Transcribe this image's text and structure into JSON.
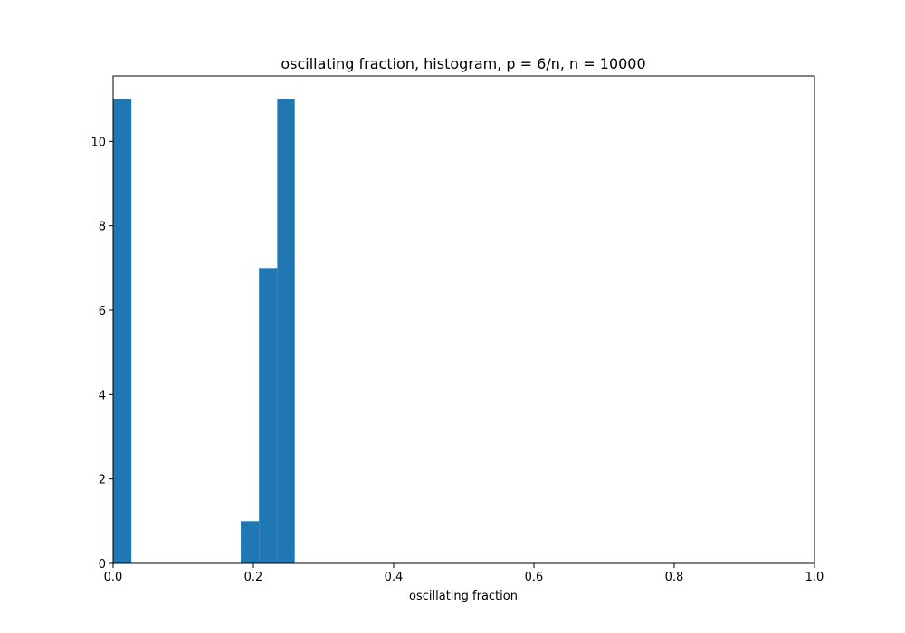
{
  "chart_data": {
    "type": "bar",
    "title": "oscillating fraction, histogram, p = 6/n, n = 10000",
    "xlabel": "oscillating fraction",
    "ylabel": "",
    "xlim": [
      0,
      1
    ],
    "ylim": [
      0,
      11.55
    ],
    "xticks": [
      "0.0",
      "0.2",
      "0.4",
      "0.6",
      "0.8",
      "1.0"
    ],
    "yticks": [
      "0",
      "2",
      "4",
      "6",
      "8",
      "10"
    ],
    "grid": false,
    "color": "#1f77b4",
    "bins": [
      {
        "x0": 0.0,
        "x1": 0.026,
        "count": 11
      },
      {
        "x0": 0.182,
        "x1": 0.208,
        "count": 1
      },
      {
        "x0": 0.208,
        "x1": 0.234,
        "count": 7
      },
      {
        "x0": 0.234,
        "x1": 0.259,
        "count": 11
      }
    ]
  }
}
